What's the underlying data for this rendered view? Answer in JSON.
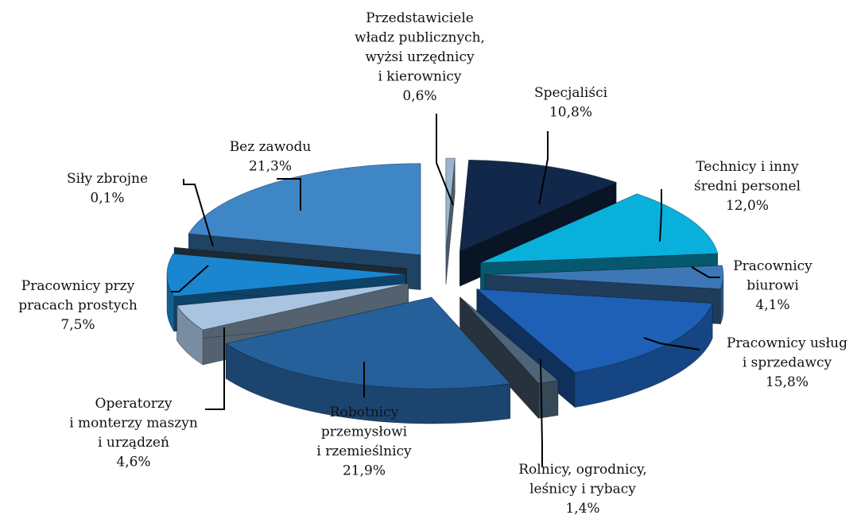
{
  "chart_data": {
    "type": "pie",
    "style": "exploded 3d",
    "legend": "none",
    "slices": [
      {
        "key": "przedstawiciele",
        "lines": [
          "Przedstawiciele",
          "władz publicznych,",
          "wyżsi urzędnicy",
          "i kierownicy"
        ],
        "value_label": "0,6%",
        "value": 0.6,
        "color": "#9bb3cc"
      },
      {
        "key": "specjalisci",
        "lines": [
          "Specjaliści"
        ],
        "value_label": "10,8%",
        "value": 10.8,
        "color": "#12284a"
      },
      {
        "key": "technicy",
        "lines": [
          "Technicy i inny",
          "średni personel"
        ],
        "value_label": "12,0%",
        "value": 12.0,
        "color": "#0ab0dc"
      },
      {
        "key": "biurowi",
        "lines": [
          "Pracownicy",
          "biurowi"
        ],
        "value_label": "4,1%",
        "value": 4.1,
        "color": "#3d77b5"
      },
      {
        "key": "uslug",
        "lines": [
          "Pracownicy usług",
          "i sprzedawcy"
        ],
        "value_label": "15,8%",
        "value": 15.8,
        "color": "#1e60b6"
      },
      {
        "key": "rolnicy",
        "lines": [
          "Rolnicy, ogrodnicy,",
          "leśnicy i rybacy"
        ],
        "value_label": "1,4%",
        "value": 1.4,
        "color": "#4d6479"
      },
      {
        "key": "robotnicy",
        "lines": [
          "Robotnicy",
          "przemysłowi",
          "i rzemieślnicy"
        ],
        "value_label": "21,9%",
        "value": 21.9,
        "color": "#26609a"
      },
      {
        "key": "operatorzy",
        "lines": [
          "Operatorzy",
          "i monterzy maszyn",
          "i urządzeń"
        ],
        "value_label": "4,6%",
        "value": 4.6,
        "color": "#a8c4e0"
      },
      {
        "key": "proste",
        "lines": [
          "Pracownicy przy",
          "pracach prostych"
        ],
        "value_label": "7,5%",
        "value": 7.5,
        "color": "#1a86d0"
      },
      {
        "key": "zbrojne",
        "lines": [
          "Siły zbrojne"
        ],
        "value_label": "0,1%",
        "value": 0.1,
        "color": "#3a5166"
      },
      {
        "key": "bez_zawodu",
        "lines": [
          "Bez zawodu"
        ],
        "value_label": "21,3%",
        "value": 21.3,
        "color": "#3f86c6"
      }
    ]
  }
}
